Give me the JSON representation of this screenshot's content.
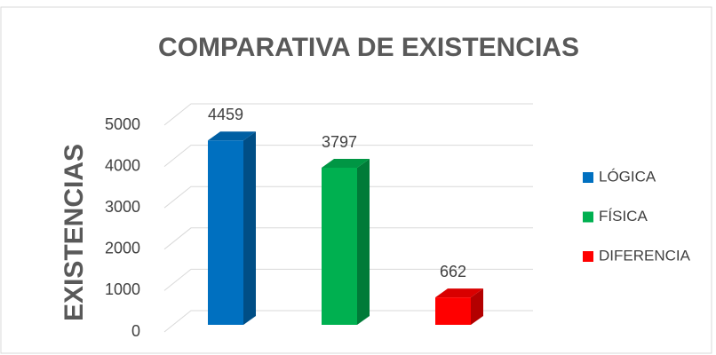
{
  "chart_data": {
    "type": "bar3d",
    "title": "COMPARATIVA DE EXISTENCIAS",
    "y_label": "EXISTENCIAS",
    "categories": [
      null
    ],
    "series": [
      {
        "name": "LÓGICA",
        "color": "#0070c0",
        "values": [
          4459
        ]
      },
      {
        "name": "FÍSICA",
        "color": "#00b050",
        "values": [
          3797
        ]
      },
      {
        "name": "DIFERENCIA",
        "color": "#ff0000",
        "values": [
          662
        ]
      }
    ],
    "ylim": [
      0,
      5000
    ],
    "yticks": [
      0,
      1000,
      2000,
      3000,
      4000,
      5000
    ],
    "grid": true,
    "legend": "right"
  }
}
